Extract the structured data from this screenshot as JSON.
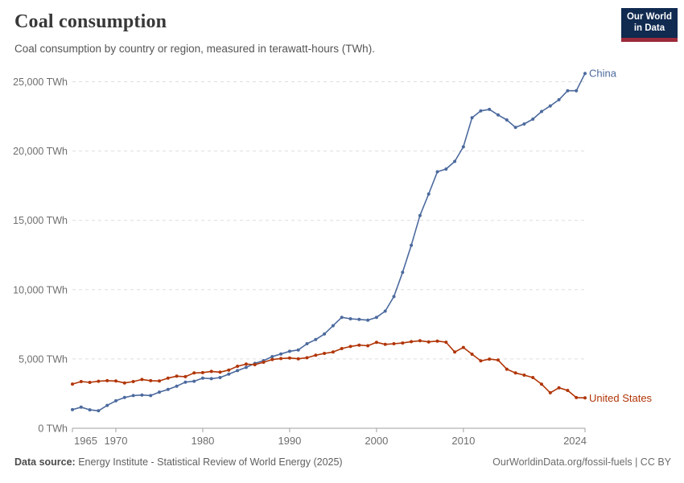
{
  "header": {
    "title": "Coal consumption",
    "subtitle": "Coal consumption by country or region, measured in terawatt-hours (TWh)."
  },
  "logo": {
    "line1": "Our World",
    "line2": "in Data",
    "bg_color": "#102A50",
    "accent_color": "#9B2A3A"
  },
  "chart_data": {
    "type": "line",
    "title": "Coal consumption",
    "ylabel": "",
    "xlabel": "",
    "grid": "horizontal-dashed",
    "legend_position": "line-end-labels",
    "xlim": [
      1965,
      2024
    ],
    "ylim": [
      0,
      25000
    ],
    "yticks": [
      0,
      5000,
      10000,
      15000,
      20000,
      25000
    ],
    "ytick_labels": [
      "0 TWh",
      "5,000 TWh",
      "10,000 TWh",
      "15,000 TWh",
      "20,000 TWh",
      "25,000 TWh"
    ],
    "xticks": [
      1965,
      1970,
      1980,
      1990,
      2000,
      2010,
      2024
    ],
    "xtick_labels": [
      "1965",
      "1970",
      "1980",
      "1990",
      "2000",
      "2010",
      "2024"
    ],
    "x": [
      1965,
      1966,
      1967,
      1968,
      1969,
      1970,
      1971,
      1972,
      1973,
      1974,
      1975,
      1976,
      1977,
      1978,
      1979,
      1980,
      1981,
      1982,
      1983,
      1984,
      1985,
      1986,
      1987,
      1988,
      1989,
      1990,
      1991,
      1992,
      1993,
      1994,
      1995,
      1996,
      1997,
      1998,
      1999,
      2000,
      2001,
      2002,
      2003,
      2004,
      2005,
      2006,
      2007,
      2008,
      2009,
      2010,
      2011,
      2012,
      2013,
      2014,
      2015,
      2016,
      2017,
      2018,
      2019,
      2020,
      2021,
      2022,
      2023,
      2024
    ],
    "series": [
      {
        "name": "China",
        "color": "#4C6A9E",
        "values": [
          1340,
          1520,
          1330,
          1260,
          1650,
          1980,
          2220,
          2360,
          2400,
          2360,
          2610,
          2800,
          3040,
          3330,
          3390,
          3620,
          3580,
          3660,
          3910,
          4160,
          4390,
          4680,
          4880,
          5170,
          5360,
          5550,
          5650,
          6100,
          6400,
          6800,
          7400,
          8000,
          7900,
          7850,
          7800,
          8000,
          8450,
          9500,
          11250,
          13200,
          15350,
          16900,
          18500,
          18700,
          19250,
          20300,
          22400,
          22900,
          23000,
          22600,
          22240,
          21700,
          21950,
          22300,
          22850,
          23250,
          23700,
          24350,
          24350,
          25600
        ]
      },
      {
        "name": "United States",
        "color": "#B13507",
        "values": [
          3190,
          3370,
          3310,
          3390,
          3430,
          3410,
          3270,
          3370,
          3520,
          3430,
          3410,
          3620,
          3760,
          3720,
          3990,
          4010,
          4100,
          4050,
          4200,
          4470,
          4630,
          4590,
          4760,
          4960,
          5030,
          5070,
          5010,
          5090,
          5270,
          5400,
          5500,
          5750,
          5900,
          6000,
          5950,
          6200,
          6050,
          6100,
          6150,
          6250,
          6310,
          6230,
          6290,
          6210,
          5500,
          5830,
          5340,
          4860,
          4990,
          4920,
          4260,
          3990,
          3830,
          3660,
          3180,
          2560,
          2920,
          2730,
          2210,
          2190
        ]
      }
    ]
  },
  "footer": {
    "datasource_label": "Data source:",
    "datasource_text": " Energy Institute - Statistical Review of World Energy (2025)",
    "right_text": "OurWorldinData.org/fossil-fuels | CC BY"
  }
}
